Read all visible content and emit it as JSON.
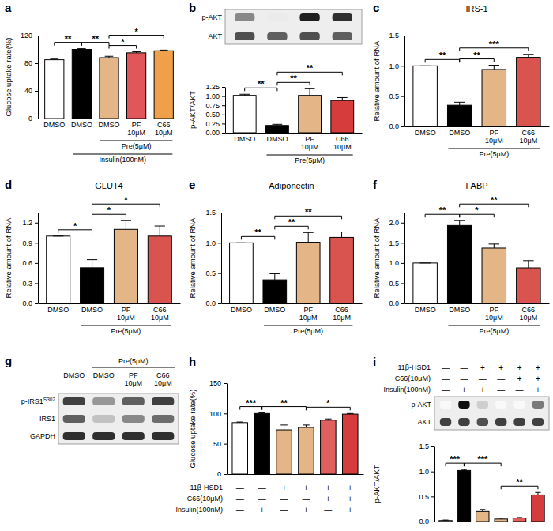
{
  "chart_data": [
    {
      "type": "bar",
      "panel": "a",
      "y_label": "Glucose uptake rate(%)",
      "categories": [
        "DMSO",
        "DMSO",
        "DMSO",
        "PF\n10μM",
        "C66\n10μM"
      ],
      "values": [
        85,
        100,
        88,
        95,
        98
      ],
      "errors": [
        1,
        1,
        2,
        1.5,
        1
      ],
      "colors": [
        "#ffffff",
        "#000000",
        "#e3b587",
        "#e15759",
        "#f0a04b"
      ],
      "ylim": [
        0,
        120
      ],
      "yticks": [
        0,
        40,
        80,
        120
      ],
      "x_groups": [
        {
          "label": "Pre(5μM)",
          "from": 2,
          "to": 4
        },
        {
          "label": "Insulin(100nM)",
          "from": 1,
          "to": 4
        }
      ],
      "significance": [
        {
          "label": "**",
          "from": 0,
          "to": 1
        },
        {
          "label": "**",
          "from": 1,
          "to": 2
        },
        {
          "label": "*",
          "from": 2,
          "to": 3
        },
        {
          "label": "*",
          "from": 2,
          "to": 4
        }
      ]
    },
    {
      "type": "bar",
      "panel": "b",
      "y_label": "p-AKT/AKT",
      "categories": [
        "DMSO",
        "DMSO",
        "PF\n10μM",
        "C66\n10μM"
      ],
      "values": [
        1.02,
        0.2,
        1.02,
        0.88
      ],
      "errors": [
        0.03,
        0.03,
        0.18,
        0.08
      ],
      "colors": [
        "#ffffff",
        "#000000",
        "#e3b587",
        "#d63c3c"
      ],
      "ylim": [
        0,
        1.25
      ],
      "yticks": [
        {
          "value": 0,
          "label": "0.00"
        },
        0.25,
        {
          "value": 0.5,
          "label": "0.50"
        },
        0.75,
        {
          "value": 1,
          "label": "1.00"
        },
        1.25
      ],
      "x_groups": [
        {
          "label": "Pre(5μM)",
          "from": 1,
          "to": 3
        }
      ],
      "significance": [
        {
          "label": "**",
          "from": 0,
          "to": 1
        },
        {
          "label": "**",
          "from": 1,
          "to": 2
        },
        {
          "label": "**",
          "from": 1,
          "to": 3
        }
      ]
    },
    {
      "type": "bar",
      "panel": "c",
      "title": "IRS-1",
      "y_label": "Relative amount of RNA",
      "categories": [
        "DMSO",
        "DMSO",
        "PF\n10μM",
        "C66\n10μM"
      ],
      "values": [
        1.0,
        0.35,
        0.94,
        1.14
      ],
      "errors": [
        0,
        0.05,
        0.07,
        0.05
      ],
      "colors": [
        "#ffffff",
        "#000000",
        "#e3b587",
        "#d9534f"
      ],
      "ylim": [
        0,
        1.5
      ],
      "yticks": [
        {
          "value": 0,
          "label": "0.0"
        },
        0.5,
        {
          "value": 1,
          "label": "1.0"
        },
        1.5
      ],
      "x_groups": [
        {
          "label": "Pre(5μM)",
          "from": 1,
          "to": 3
        }
      ],
      "significance": [
        {
          "label": "**",
          "from": 0,
          "to": 1
        },
        {
          "label": "**",
          "from": 1,
          "to": 2
        },
        {
          "label": "***",
          "from": 1,
          "to": 3
        }
      ]
    },
    {
      "type": "bar",
      "panel": "d",
      "title": "GLUT4",
      "y_label": "Relative amount of RNA",
      "categories": [
        "DMSO",
        "DMSO",
        "PF\n10μM",
        "C66\n10μM"
      ],
      "values": [
        1.0,
        0.53,
        1.1,
        1.0
      ],
      "errors": [
        0,
        0.12,
        0.13,
        0.15
      ],
      "colors": [
        "#ffffff",
        "#000000",
        "#e3b587",
        "#d9534f"
      ],
      "ylim": [
        0,
        1.35
      ],
      "yticks": [
        {
          "value": 0,
          "label": "0.0"
        },
        0.3,
        0.6,
        0.9,
        1.2
      ],
      "x_groups": [
        {
          "label": "Pre(5μM)",
          "from": 1,
          "to": 3
        }
      ],
      "significance": [
        {
          "label": "*",
          "from": 0,
          "to": 1
        },
        {
          "label": "*",
          "from": 1,
          "to": 2
        },
        {
          "label": "*",
          "from": 1,
          "to": 3
        }
      ]
    },
    {
      "type": "bar",
      "panel": "e",
      "title": "Adiponectin",
      "y_label": "Relative amount of RNA",
      "categories": [
        "DMSO",
        "DMSO",
        "PF\n10μM",
        "C66\n10μM"
      ],
      "values": [
        1.0,
        0.39,
        1.01,
        1.09
      ],
      "errors": [
        0,
        0.1,
        0.16,
        0.09
      ],
      "colors": [
        "#ffffff",
        "#000000",
        "#e3b587",
        "#d9534f"
      ],
      "ylim": [
        0,
        1.5
      ],
      "yticks": [
        {
          "value": 0,
          "label": "0.0"
        },
        0.5,
        {
          "value": 1,
          "label": "1.0"
        },
        1.5
      ],
      "x_groups": [
        {
          "label": "Pre(5μM)",
          "from": 1,
          "to": 3
        }
      ],
      "significance": [
        {
          "label": "**",
          "from": 0,
          "to": 1
        },
        {
          "label": "**",
          "from": 1,
          "to": 2
        },
        {
          "label": "**",
          "from": 1,
          "to": 3
        }
      ]
    },
    {
      "type": "bar",
      "panel": "f",
      "title": "FABP",
      "y_label": "Relative amount of RNA",
      "categories": [
        "DMSO",
        "DMSO",
        "PF\n10μM",
        "C66\n10μM"
      ],
      "values": [
        1.0,
        1.93,
        1.37,
        0.88
      ],
      "errors": [
        0,
        0.12,
        0.1,
        0.18
      ],
      "colors": [
        "#ffffff",
        "#000000",
        "#e3b587",
        "#d9534f"
      ],
      "ylim": [
        0,
        2.25
      ],
      "yticks": [
        {
          "value": 0,
          "label": "0.0"
        },
        0.5,
        {
          "value": 1,
          "label": "1.0"
        },
        1.5,
        {
          "value": 2,
          "label": "2.0"
        }
      ],
      "x_groups": [
        {
          "label": "Pre(5μM)",
          "from": 1,
          "to": 3
        }
      ],
      "significance": [
        {
          "label": "**",
          "from": 0,
          "to": 1
        },
        {
          "label": "*",
          "from": 1,
          "to": 2
        },
        {
          "label": "**",
          "from": 1,
          "to": 3
        }
      ]
    },
    {
      "type": "bar",
      "panel": "h",
      "y_label": "Glucose uptake rate(%)",
      "categories": [
        null,
        null,
        null,
        null,
        null,
        null
      ],
      "tick_labels": "y",
      "values": [
        85,
        100,
        73,
        77,
        89,
        99
      ],
      "errors": [
        1,
        1,
        8,
        4,
        2,
        1
      ],
      "colors": [
        "#ffffff",
        "#000000",
        "#e3b587",
        "#e3b587",
        "#e06060",
        "#d63c3c"
      ],
      "ylim": [
        0,
        150
      ],
      "yticks": [
        0,
        50,
        100,
        150
      ],
      "condition_table": {
        "rows": [
          {
            "label": "11β-HSD1",
            "signs": [
              "—",
              "—",
              "+",
              "+",
              "+",
              "+"
            ]
          },
          {
            "label": "C66(10μM)",
            "signs": [
              "—",
              "—",
              "—",
              "—",
              "+",
              "+"
            ]
          },
          {
            "label": "Insulin(100nM)",
            "signs": [
              "—",
              "+",
              "—",
              "+",
              "—",
              "+"
            ]
          }
        ]
      },
      "significance": [
        {
          "label": "***",
          "from": 0,
          "to": 1
        },
        {
          "label": "**",
          "from": 1,
          "to": 3
        },
        {
          "label": "*",
          "from": 3,
          "to": 5
        }
      ]
    },
    {
      "type": "bar",
      "panel": "i",
      "y_label": "p-AKT/AKT",
      "categories": [
        null,
        null,
        null,
        null,
        null,
        null
      ],
      "tick_labels": "y",
      "values": [
        0.02,
        1.02,
        0.2,
        0.05,
        0.07,
        0.53
      ],
      "errors": [
        0.01,
        0.02,
        0.04,
        0.02,
        0.01,
        0.05
      ],
      "colors": [
        "#ffffff",
        "#000000",
        "#e3b587",
        "#e3b587",
        "#e06060",
        "#d63c3c"
      ],
      "ylim": [
        0,
        1.5
      ],
      "yticks": [
        {
          "value": 0,
          "label": "0.0"
        },
        0.5,
        {
          "value": 1,
          "label": "1.0"
        },
        1.5
      ],
      "condition_table": {
        "rows": [
          {
            "label": "11β-HSD1",
            "signs": [
              "—",
              "—",
              "+",
              "+",
              "+",
              "+"
            ]
          },
          {
            "label": "C66(10μM)",
            "signs": [
              "—",
              "—",
              "—",
              "—",
              "+",
              "+"
            ]
          },
          {
            "label": "Insulin(100nM)",
            "signs": [
              "—",
              "+",
              "+",
              "—",
              "—",
              "+"
            ]
          }
        ]
      },
      "significance": [
        {
          "label": "***",
          "from": 0,
          "to": 1
        },
        {
          "label": "***",
          "from": 1,
          "to": 3
        },
        {
          "label": "**",
          "from": 3,
          "to": 5
        }
      ]
    }
  ],
  "blots": [
    {
      "rows": [
        {
          "label": "p-AKT",
          "intensity": [
            0.55,
            0.15,
            0.9,
            0.85
          ]
        },
        {
          "label": "AKT",
          "intensity": [
            0.75,
            0.7,
            0.75,
            0.7
          ]
        }
      ]
    },
    {
      "panel": "g",
      "lanes": [
        "DMSO",
        "DMSO",
        "PF\n10μM",
        "C66\n10μM"
      ],
      "lane_groups": [
        {
          "label": "Pre(5μM)",
          "from": 1,
          "to": 3
        }
      ],
      "rows": [
        {
          "label": "p-IRS1",
          "superscript": "S302",
          "intensity": [
            0.8,
            0.5,
            0.7,
            0.8
          ]
        },
        {
          "label": "IRS1",
          "intensity": [
            0.7,
            0.35,
            0.55,
            0.65
          ]
        },
        {
          "label": "GAPDH",
          "intensity": [
            0.85,
            0.85,
            0.85,
            0.85
          ]
        }
      ]
    },
    {
      "rows": [
        {
          "label": "p-AKT",
          "intensity": [
            0.05,
            0.95,
            0.3,
            0.05,
            0.05,
            0.6
          ]
        },
        {
          "label": "AKT",
          "intensity": [
            0.8,
            0.8,
            0.75,
            0.8,
            0.8,
            0.8
          ]
        }
      ]
    }
  ]
}
